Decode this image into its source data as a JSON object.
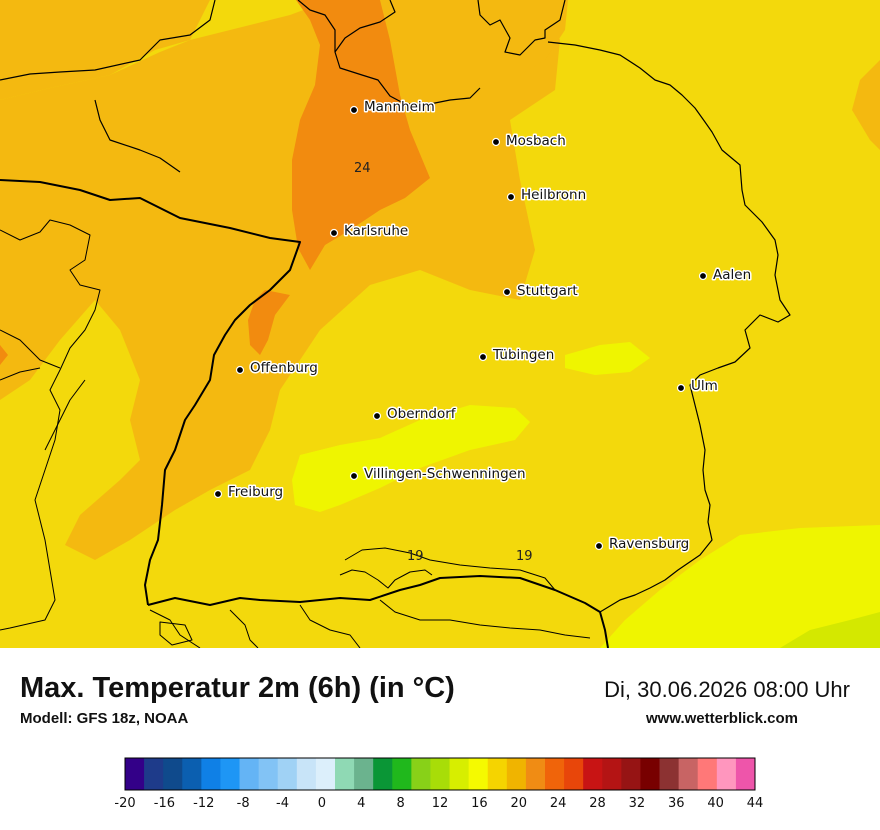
{
  "map": {
    "cities": [
      {
        "name": "Mannheim"
      },
      {
        "name": "Mosbach"
      },
      {
        "name": "Heilbronn"
      },
      {
        "name": "Karlsruhe"
      },
      {
        "name": "Aalen"
      },
      {
        "name": "Stuttgart"
      },
      {
        "name": "Tübingen"
      },
      {
        "name": "Offenburg"
      },
      {
        "name": "Ulm"
      },
      {
        "name": "Oberndorf"
      },
      {
        "name": "Villingen-Schwenningen"
      },
      {
        "name": "Freiburg"
      },
      {
        "name": "Ravensburg"
      }
    ],
    "contour_labels": [
      "24",
      "19",
      "19"
    ],
    "colors": {
      "t16": "#eff500",
      "t18": "#f3d90c",
      "t20": "#f4b910",
      "t22": "#f28b0f",
      "t26": "#d4e800",
      "border": "#000000"
    }
  },
  "header": {
    "title": "Max. Temperatur 2m (6h) (in °C)",
    "model": "Modell: GFS 18z, NOAA",
    "datetime": "Di, 30.06.2026 08:00 Uhr",
    "website": "www.wetterblick.com"
  },
  "legend": {
    "ticks": [
      "-20",
      "-16",
      "-12",
      "-8",
      "-4",
      "0",
      "4",
      "8",
      "12",
      "16",
      "20",
      "24",
      "28",
      "32",
      "36",
      "40",
      "44"
    ],
    "colors": [
      "#330088",
      "#1e3b8a",
      "#0f4a8c",
      "#0b5fb0",
      "#0f80e6",
      "#1e96f5",
      "#64b4f5",
      "#82c3f5",
      "#a0d2f5",
      "#c8e4f8",
      "#dceffb",
      "#8fd9b4",
      "#6bb38e",
      "#0a9636",
      "#20b81c",
      "#88d118",
      "#a8dd08",
      "#d7ee00",
      "#f5fa00",
      "#f5d400",
      "#f0b400",
      "#f08c14",
      "#f0640a",
      "#e8460a",
      "#c81414",
      "#b41414",
      "#961414",
      "#780000",
      "#8c3232",
      "#c86464",
      "#ff7878",
      "#ff96be",
      "#ee55aa"
    ]
  }
}
